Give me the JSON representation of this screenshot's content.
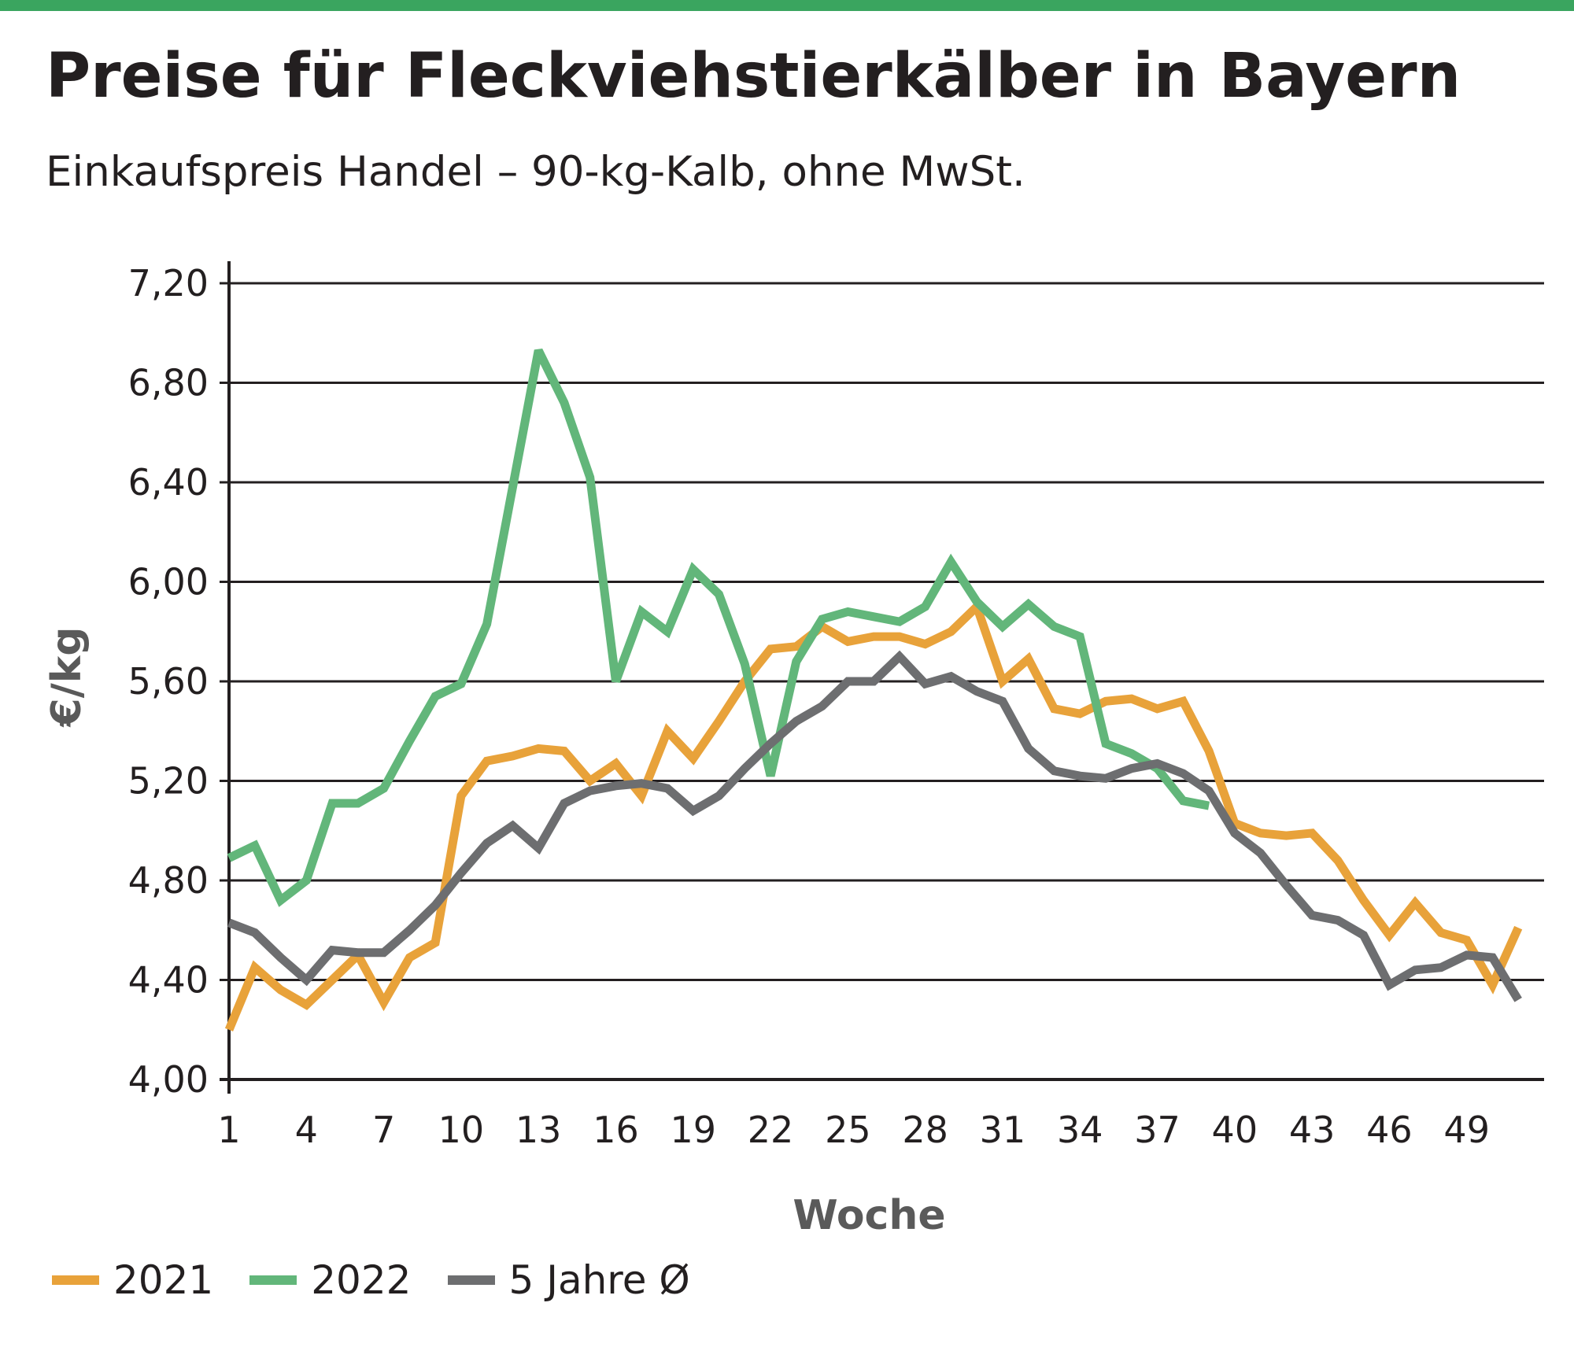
{
  "header": {
    "title": "Preise für Fleckviehstierkälber in Bayern",
    "subtitle": "Einkaufspreis Handel – 90-kg-Kalb, ohne MwSt."
  },
  "colors": {
    "top_bar": "#3aa55f",
    "gridline": "#231f20",
    "series_2021": "#e8a23a",
    "series_2022": "#62b67a",
    "series_avg": "#6d6e70"
  },
  "chart_data": {
    "type": "line",
    "title": "Preise für Fleckviehstierkälber in Bayern",
    "subtitle": "Einkaufspreis Handel – 90-kg-Kalb, ohne MwSt.",
    "xlabel": "Woche",
    "ylabel": "€/kg",
    "xlim": [
      1,
      52
    ],
    "ylim": [
      4.0,
      7.2
    ],
    "x_ticks": [
      1,
      4,
      7,
      10,
      13,
      16,
      19,
      22,
      25,
      28,
      31,
      34,
      37,
      40,
      43,
      46,
      49
    ],
    "x_tick_labels": [
      "1",
      "4",
      "7",
      "10",
      "13",
      "16",
      "19",
      "22",
      "25",
      "28",
      "31",
      "34",
      "37",
      "40",
      "43",
      "46",
      "49"
    ],
    "y_ticks": [
      4.0,
      4.4,
      4.8,
      5.2,
      5.6,
      6.0,
      6.4,
      6.8,
      7.2
    ],
    "y_tick_labels": [
      "4,00",
      "4,40",
      "4,80",
      "5,20",
      "5,60",
      "6,00",
      "6,40",
      "6,80",
      "7,20"
    ],
    "grid": "horizontal",
    "legend_position": "bottom-left",
    "series": [
      {
        "name": "2021",
        "color": "#e8a23a",
        "x": [
          1,
          2,
          3,
          4,
          5,
          6,
          7,
          8,
          9,
          10,
          11,
          12,
          13,
          14,
          15,
          16,
          17,
          18,
          19,
          20,
          21,
          22,
          23,
          24,
          25,
          26,
          27,
          28,
          29,
          30,
          31,
          32,
          33,
          34,
          35,
          36,
          37,
          38,
          39,
          40,
          41,
          42,
          43,
          44,
          45,
          46,
          47,
          48,
          49,
          50,
          51
        ],
        "values": [
          4.2,
          4.45,
          4.36,
          4.3,
          4.4,
          4.5,
          4.31,
          4.49,
          4.55,
          5.14,
          5.28,
          5.3,
          5.33,
          5.32,
          5.2,
          5.27,
          5.14,
          5.4,
          5.29,
          5.44,
          5.6,
          5.73,
          5.74,
          5.82,
          5.76,
          5.78,
          5.78,
          5.75,
          5.8,
          5.9,
          5.6,
          5.69,
          5.49,
          5.47,
          5.52,
          5.53,
          5.49,
          5.52,
          5.32,
          5.03,
          4.99,
          4.98,
          4.99,
          4.88,
          4.72,
          4.58,
          4.71,
          4.59,
          4.56,
          4.38,
          4.61
        ]
      },
      {
        "name": "2022",
        "color": "#62b67a",
        "x": [
          1,
          2,
          3,
          4,
          5,
          6,
          7,
          8,
          9,
          10,
          11,
          12,
          13,
          14,
          15,
          16,
          17,
          18,
          19,
          20,
          21,
          22,
          23,
          24,
          25,
          26,
          27,
          28,
          29,
          30,
          31,
          32,
          33,
          34,
          35,
          36,
          37,
          38,
          39
        ],
        "values": [
          4.89,
          4.94,
          4.72,
          4.8,
          5.11,
          5.11,
          5.17,
          5.36,
          5.54,
          5.59,
          5.83,
          6.38,
          6.93,
          6.72,
          6.42,
          5.6,
          5.88,
          5.8,
          6.05,
          5.95,
          5.67,
          5.22,
          5.68,
          5.85,
          5.88,
          5.86,
          5.84,
          5.9,
          6.08,
          5.92,
          5.82,
          5.91,
          5.82,
          5.78,
          5.35,
          5.31,
          5.25,
          5.12,
          5.1
        ]
      },
      {
        "name": "5 Jahre Ø",
        "color": "#6d6e70",
        "x": [
          1,
          2,
          3,
          4,
          5,
          6,
          7,
          8,
          9,
          10,
          11,
          12,
          13,
          14,
          15,
          16,
          17,
          18,
          19,
          20,
          21,
          22,
          23,
          24,
          25,
          26,
          27,
          28,
          29,
          30,
          31,
          32,
          33,
          34,
          35,
          36,
          37,
          38,
          39,
          40,
          41,
          42,
          43,
          44,
          45,
          46,
          47,
          48,
          49,
          50,
          51
        ],
        "values": [
          4.63,
          4.59,
          4.49,
          4.4,
          4.52,
          4.51,
          4.51,
          4.6,
          4.7,
          4.83,
          4.95,
          5.02,
          4.93,
          5.11,
          5.16,
          5.18,
          5.19,
          5.17,
          5.08,
          5.14,
          5.25,
          5.35,
          5.44,
          5.5,
          5.6,
          5.6,
          5.7,
          5.59,
          5.62,
          5.56,
          5.52,
          5.33,
          5.24,
          5.22,
          5.21,
          5.25,
          5.27,
          5.23,
          5.16,
          4.99,
          4.91,
          4.78,
          4.66,
          4.64,
          4.58,
          4.38,
          4.44,
          4.45,
          4.5,
          4.49,
          4.32
        ]
      }
    ]
  }
}
